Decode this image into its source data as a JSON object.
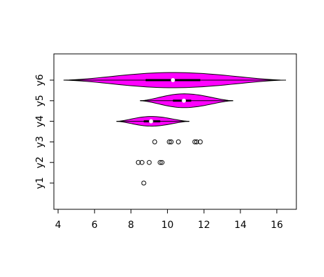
{
  "chart_data": {
    "type": "violin",
    "categories": [
      "y1",
      "y2",
      "y3",
      "y4",
      "y5",
      "y6"
    ],
    "groups": [
      {
        "points": [
          8.7
        ]
      },
      {
        "points": [
          8.4,
          8.6,
          9.0,
          9.6,
          9.7
        ]
      },
      {
        "points": [
          9.3,
          10.1,
          10.2,
          10.6,
          11.5,
          11.6,
          11.8
        ]
      },
      {
        "min": 7.2,
        "q1": 8.7,
        "median": 9.1,
        "q3": 9.6,
        "max": 11.2
      },
      {
        "min": 8.5,
        "q1": 10.3,
        "median": 10.9,
        "q3": 11.3,
        "max": 13.6
      },
      {
        "min": 4.3,
        "q1": 8.8,
        "median": 10.3,
        "q3": 11.8,
        "max": 16.5
      }
    ],
    "color": "#ff00ff",
    "xlim": [
      3.77,
      17.07
    ],
    "xticks": [
      4,
      6,
      8,
      10,
      12,
      14,
      16
    ]
  }
}
